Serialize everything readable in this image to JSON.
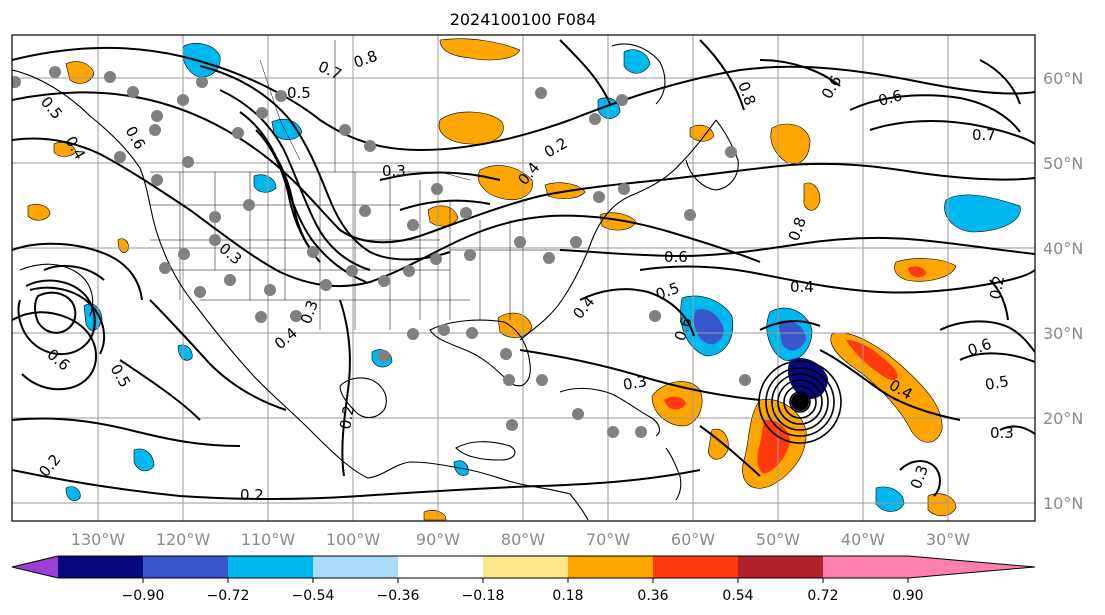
{
  "title": "2024100100 F084",
  "lon_labels": [
    "130°W",
    "120°W",
    "110°W",
    "100°W",
    "90°W",
    "80°W",
    "70°W",
    "60°W",
    "50°W",
    "40°W",
    "30°W"
  ],
  "lat_labels": [
    "60°N",
    "50°N",
    "40°N",
    "30°N",
    "20°N",
    "10°N"
  ],
  "colorbar": {
    "ticks": [
      "−0.90",
      "−0.72",
      "−0.54",
      "−0.36",
      "−0.18",
      "0.18",
      "0.36",
      "0.54",
      "0.72",
      "0.90"
    ],
    "colors": [
      "#9a3ed6",
      "#08087f",
      "#3a56cc",
      "#00b8f0",
      "#a8dcf8",
      "#ffffff",
      "#fde68a",
      "#ffa500",
      "#ff3a0c",
      "#b3222a",
      "#ff7fb0"
    ]
  },
  "contour_labels": [
    "0.7",
    "0.8",
    "0.5",
    "0.6",
    "0.4",
    "0.3",
    "0.2",
    "0.4",
    "0.6",
    "0.5",
    "0.3",
    "0.4",
    "0.6",
    "0.7",
    "0.6",
    "0.8",
    "0.4",
    "0.5",
    "0.3",
    "0.6",
    "0.5",
    "0.4",
    "0.3",
    "0.2",
    "0.2",
    "0.6",
    "0.3",
    "0.2",
    "0.5",
    "0.6",
    "0.4",
    "0.3",
    "0.8",
    "0.2"
  ]
}
